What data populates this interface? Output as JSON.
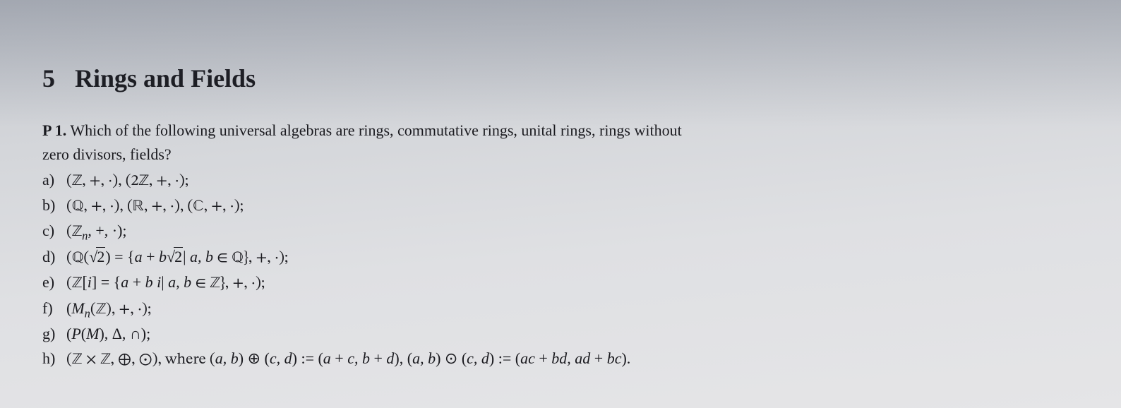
{
  "section": {
    "number": "5",
    "title": "Rings and Fields"
  },
  "problem": {
    "label": "P 1.",
    "question_part1": "Which of the following universal algebras are rings, commutative rings, unital rings, rings without",
    "question_part2": "zero divisors, fields?"
  },
  "items": {
    "a": {
      "label": "a)",
      "expr": "(ℤ, +, ·), (2ℤ, +, ·);"
    },
    "b": {
      "label": "b)",
      "expr": "(ℚ, +, ·), (ℝ, +, ·), (ℂ, +, ·);"
    },
    "c": {
      "label": "c)",
      "expr_pre": "(ℤ",
      "sub": "n",
      "expr_post": ", +, ·);"
    },
    "d": {
      "label": "d)",
      "p1": "(ℚ(",
      "sqrt_arg": "2",
      "p2": ") = {",
      "p3": "a",
      "p4": " + ",
      "p5": "b",
      "sqrt_arg2": "2",
      "p6": "| ",
      "p7": "a, b",
      "p8": " ∈ ℚ}, +, ·);"
    },
    "e": {
      "label": "e)",
      "p1": "(ℤ[",
      "p2": "i",
      "p3": "] = {",
      "p4": "a",
      "p5": " + ",
      "p6": "b i",
      "p7": "| ",
      "p8": "a, b",
      "p9": " ∈ ℤ}, +, ·);"
    },
    "f": {
      "label": "f)",
      "p1": "(",
      "cal": "M",
      "sub": "n",
      "p2": "(ℤ), +, ·);"
    },
    "g": {
      "label": "g)",
      "p1": "(",
      "cal": "P",
      "p2": "(",
      "p3": "M",
      "p4": "), Δ, ∩);"
    },
    "h": {
      "label": "h)",
      "p1": "(ℤ × ℤ, ⊕, ⊙), where (",
      "p2": "a, b",
      "p3": ") ⊕ (",
      "p4": "c, d",
      "p5": ") := (",
      "p6": "a",
      "p7": " + ",
      "p8": "c, b",
      "p9": " + ",
      "p10": "d",
      "p11": "), (",
      "p12": "a, b",
      "p13": ") ⊙ (",
      "p14": "c, d",
      "p15": ") := (",
      "p16": "ac",
      "p17": " + ",
      "p18": "bd, ad",
      "p19": " + ",
      "p20": "bc",
      "p21": ")."
    }
  },
  "style": {
    "text_color": "#1a1a1f",
    "heading_fontsize_pt": 27,
    "body_fontsize_pt": 17,
    "background_gradient": [
      "#c5c8ce",
      "#d4d6da",
      "#dfe0e3",
      "#e5e5e7"
    ]
  }
}
